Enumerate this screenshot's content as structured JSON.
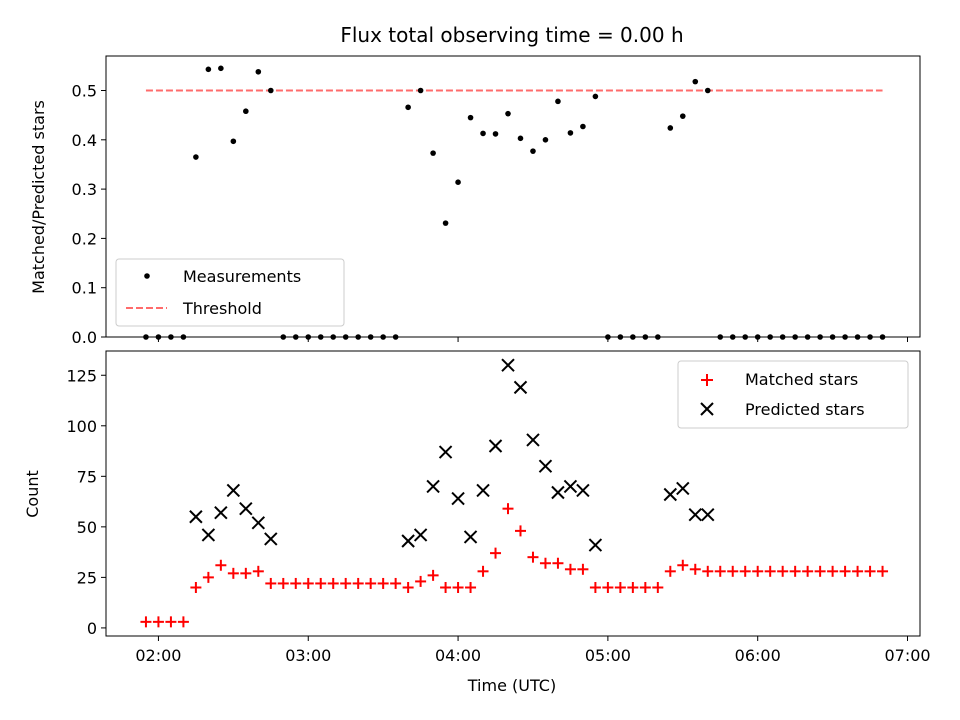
{
  "chart_data": [
    {
      "type": "scatter",
      "title": "Flux total observing time = 0.00 h",
      "xlabel": "",
      "ylabel": "Matched/Predicted stars",
      "ylim": [
        0,
        0.57
      ],
      "xlim": [
        "01:39",
        "07:05"
      ],
      "yticks": [
        "0.0",
        "0.1",
        "0.2",
        "0.3",
        "0.4",
        "0.5"
      ],
      "legend_position": "lower-left",
      "legend": [
        "Measurements",
        "Threshold"
      ],
      "threshold": {
        "name": "Threshold",
        "value": 0.5,
        "x_start": "01:55",
        "x_end": "06:50",
        "color": "#ff6b6b"
      },
      "series": [
        {
          "name": "Measurements",
          "color": "#000000",
          "points": [
            [
              "01:55",
              0
            ],
            [
              "02:00",
              0
            ],
            [
              "02:05",
              0
            ],
            [
              "02:10",
              0
            ],
            [
              "02:15",
              0.365
            ],
            [
              "02:20",
              0.543
            ],
            [
              "02:25",
              0.545
            ],
            [
              "02:30",
              0.397
            ],
            [
              "02:35",
              0.458
            ],
            [
              "02:40",
              0.538
            ],
            [
              "02:45",
              0.5
            ],
            [
              "02:50",
              0
            ],
            [
              "02:55",
              0
            ],
            [
              "03:00",
              0
            ],
            [
              "03:05",
              0
            ],
            [
              "03:10",
              0
            ],
            [
              "03:15",
              0
            ],
            [
              "03:20",
              0
            ],
            [
              "03:25",
              0
            ],
            [
              "03:30",
              0
            ],
            [
              "03:35",
              0
            ],
            [
              "03:40",
              0.466
            ],
            [
              "03:45",
              0.5
            ],
            [
              "03:50",
              0.373
            ],
            [
              "03:55",
              0.231
            ],
            [
              "04:00",
              0.314
            ],
            [
              "04:05",
              0.445
            ],
            [
              "04:10",
              0.413
            ],
            [
              "04:15",
              0.412
            ],
            [
              "04:20",
              0.453
            ],
            [
              "04:25",
              0.403
            ],
            [
              "04:30",
              0.377
            ],
            [
              "04:35",
              0.4
            ],
            [
              "04:40",
              0.478
            ],
            [
              "04:45",
              0.414
            ],
            [
              "04:50",
              0.427
            ],
            [
              "04:55",
              0.488
            ],
            [
              "05:00",
              0
            ],
            [
              "05:05",
              0
            ],
            [
              "05:10",
              0
            ],
            [
              "05:15",
              0
            ],
            [
              "05:20",
              0
            ],
            [
              "05:25",
              0.424
            ],
            [
              "05:30",
              0.448
            ],
            [
              "05:35",
              0.518
            ],
            [
              "05:40",
              0.5
            ],
            [
              "05:45",
              0
            ],
            [
              "05:50",
              0
            ],
            [
              "05:55",
              0
            ],
            [
              "06:00",
              0
            ],
            [
              "06:05",
              0
            ],
            [
              "06:10",
              0
            ],
            [
              "06:15",
              0
            ],
            [
              "06:20",
              0
            ],
            [
              "06:25",
              0
            ],
            [
              "06:30",
              0
            ],
            [
              "06:35",
              0
            ],
            [
              "06:40",
              0
            ],
            [
              "06:45",
              0
            ],
            [
              "06:50",
              0
            ]
          ]
        }
      ]
    },
    {
      "type": "scatter",
      "title": "",
      "xlabel": "Time (UTC)",
      "ylabel": "Count",
      "ylim": [
        -4,
        137
      ],
      "xlim": [
        "01:39",
        "07:05"
      ],
      "yticks": [
        "0",
        "25",
        "50",
        "75",
        "100",
        "125"
      ],
      "xticks": [
        "02:00",
        "03:00",
        "04:00",
        "05:00",
        "06:00",
        "07:00"
      ],
      "legend_position": "top-right",
      "legend": [
        "Matched stars",
        "Predicted stars"
      ],
      "series": [
        {
          "name": "Matched stars",
          "marker": "+",
          "color": "#ff0000",
          "points": [
            [
              "01:55",
              3
            ],
            [
              "02:00",
              3
            ],
            [
              "02:05",
              3
            ],
            [
              "02:10",
              3
            ],
            [
              "02:15",
              20
            ],
            [
              "02:20",
              25
            ],
            [
              "02:25",
              31
            ],
            [
              "02:30",
              27
            ],
            [
              "02:35",
              27
            ],
            [
              "02:40",
              28
            ],
            [
              "02:45",
              22
            ],
            [
              "02:50",
              22
            ],
            [
              "02:55",
              22
            ],
            [
              "03:00",
              22
            ],
            [
              "03:05",
              22
            ],
            [
              "03:10",
              22
            ],
            [
              "03:15",
              22
            ],
            [
              "03:20",
              22
            ],
            [
              "03:25",
              22
            ],
            [
              "03:30",
              22
            ],
            [
              "03:35",
              22
            ],
            [
              "03:40",
              20
            ],
            [
              "03:45",
              23
            ],
            [
              "03:50",
              26
            ],
            [
              "03:55",
              20
            ],
            [
              "04:00",
              20
            ],
            [
              "04:05",
              20
            ],
            [
              "04:10",
              28
            ],
            [
              "04:15",
              37
            ],
            [
              "04:20",
              59
            ],
            [
              "04:25",
              48
            ],
            [
              "04:30",
              35
            ],
            [
              "04:35",
              32
            ],
            [
              "04:40",
              32
            ],
            [
              "04:45",
              29
            ],
            [
              "04:50",
              29
            ],
            [
              "04:55",
              20
            ],
            [
              "05:00",
              20
            ],
            [
              "05:05",
              20
            ],
            [
              "05:10",
              20
            ],
            [
              "05:15",
              20
            ],
            [
              "05:20",
              20
            ],
            [
              "05:25",
              28
            ],
            [
              "05:30",
              31
            ],
            [
              "05:35",
              29
            ],
            [
              "05:40",
              28
            ],
            [
              "05:45",
              28
            ],
            [
              "05:50",
              28
            ],
            [
              "05:55",
              28
            ],
            [
              "06:00",
              28
            ],
            [
              "06:05",
              28
            ],
            [
              "06:10",
              28
            ],
            [
              "06:15",
              28
            ],
            [
              "06:20",
              28
            ],
            [
              "06:25",
              28
            ],
            [
              "06:30",
              28
            ],
            [
              "06:35",
              28
            ],
            [
              "06:40",
              28
            ],
            [
              "06:45",
              28
            ],
            [
              "06:50",
              28
            ]
          ]
        },
        {
          "name": "Predicted stars",
          "marker": "x",
          "color": "#000000",
          "points": [
            [
              "02:15",
              55
            ],
            [
              "02:20",
              46
            ],
            [
              "02:25",
              57
            ],
            [
              "02:30",
              68
            ],
            [
              "02:35",
              59
            ],
            [
              "02:40",
              52
            ],
            [
              "02:45",
              44
            ],
            [
              "03:40",
              43
            ],
            [
              "03:45",
              46
            ],
            [
              "03:50",
              70
            ],
            [
              "03:55",
              87
            ],
            [
              "04:00",
              64
            ],
            [
              "04:05",
              45
            ],
            [
              "04:10",
              68
            ],
            [
              "04:15",
              90
            ],
            [
              "04:20",
              130
            ],
            [
              "04:25",
              119
            ],
            [
              "04:30",
              93
            ],
            [
              "04:35",
              80
            ],
            [
              "04:40",
              67
            ],
            [
              "04:45",
              70
            ],
            [
              "04:50",
              68
            ],
            [
              "04:55",
              41
            ],
            [
              "05:25",
              66
            ],
            [
              "05:30",
              69
            ],
            [
              "05:35",
              56
            ],
            [
              "05:40",
              56
            ]
          ]
        }
      ]
    }
  ]
}
